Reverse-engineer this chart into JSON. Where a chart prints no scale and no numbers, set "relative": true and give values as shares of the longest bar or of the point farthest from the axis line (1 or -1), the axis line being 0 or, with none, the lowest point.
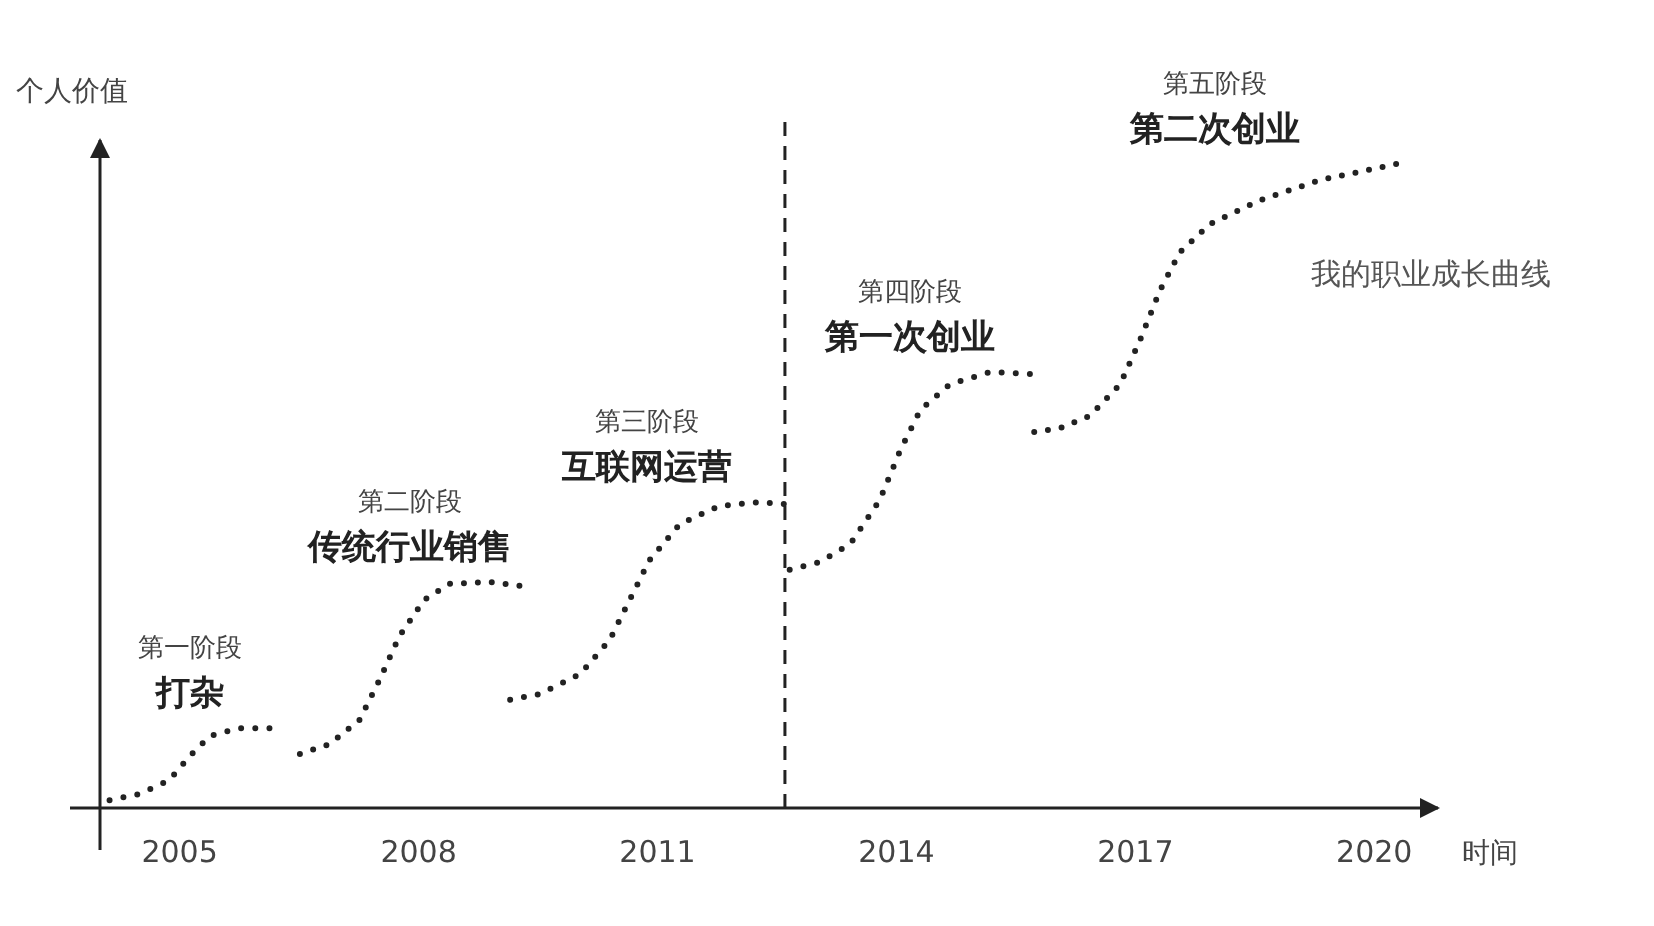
{
  "chart_data": {
    "type": "line",
    "relative": true,
    "xlabel": "时间",
    "ylabel": "个人价值",
    "line_style": "dotted",
    "marker": "none",
    "xlim": [
      2004.0,
      2020.8
    ],
    "xticks": [
      2005,
      2008,
      2011,
      2014,
      2017,
      2020
    ],
    "series": [
      {
        "color": "#222222",
        "x": [
          2004.12,
          2004.5,
          2004.87,
          2005.13,
          2005.38,
          2005.75,
          2006.13
        ],
        "values": [
          0.012,
          0.022,
          0.043,
          0.081,
          0.112,
          0.124,
          0.124
        ]
      },
      {
        "color": "#222222",
        "x": [
          2006.51,
          2006.88,
          2007.26,
          2007.51,
          2007.76,
          2008.07,
          2008.39,
          2008.89,
          2009.27
        ],
        "values": [
          0.084,
          0.099,
          0.137,
          0.199,
          0.267,
          0.323,
          0.348,
          0.351,
          0.345
        ]
      },
      {
        "color": "#222222",
        "x": [
          2009.15,
          2009.52,
          2010.03,
          2010.4,
          2010.65,
          2010.9,
          2011.28,
          2011.78,
          2012.29,
          2012.59
        ],
        "values": [
          0.168,
          0.177,
          0.208,
          0.261,
          0.323,
          0.385,
          0.441,
          0.469,
          0.475,
          0.472
        ]
      },
      {
        "color": "#222222",
        "x": [
          2012.66,
          2013.04,
          2013.42,
          2013.79,
          2014.05,
          2014.3,
          2014.67,
          2015.18,
          2015.68
        ],
        "values": [
          0.37,
          0.382,
          0.41,
          0.478,
          0.556,
          0.618,
          0.658,
          0.677,
          0.674
        ]
      },
      {
        "color": "#222222",
        "x": [
          2015.73,
          2016.06,
          2016.43,
          2016.81,
          2017.06,
          2017.31,
          2017.56,
          2017.94,
          2018.57,
          2019.32,
          2020.28
        ],
        "values": [
          0.584,
          0.59,
          0.609,
          0.658,
          0.727,
          0.804,
          0.863,
          0.907,
          0.944,
          0.975,
          1.0
        ]
      }
    ],
    "ref_lines": [
      {
        "axis": "x",
        "value": 2012.6,
        "color": "#222222",
        "line_style": "dashed"
      }
    ],
    "annotations": [
      "第一阶段",
      "打杂",
      "第二阶段",
      "传统行业销售",
      "第三阶段",
      "互联网运营",
      "第四阶段",
      "第一次创业",
      "第五阶段",
      "第二次创业",
      "我的职业成长曲线"
    ]
  }
}
